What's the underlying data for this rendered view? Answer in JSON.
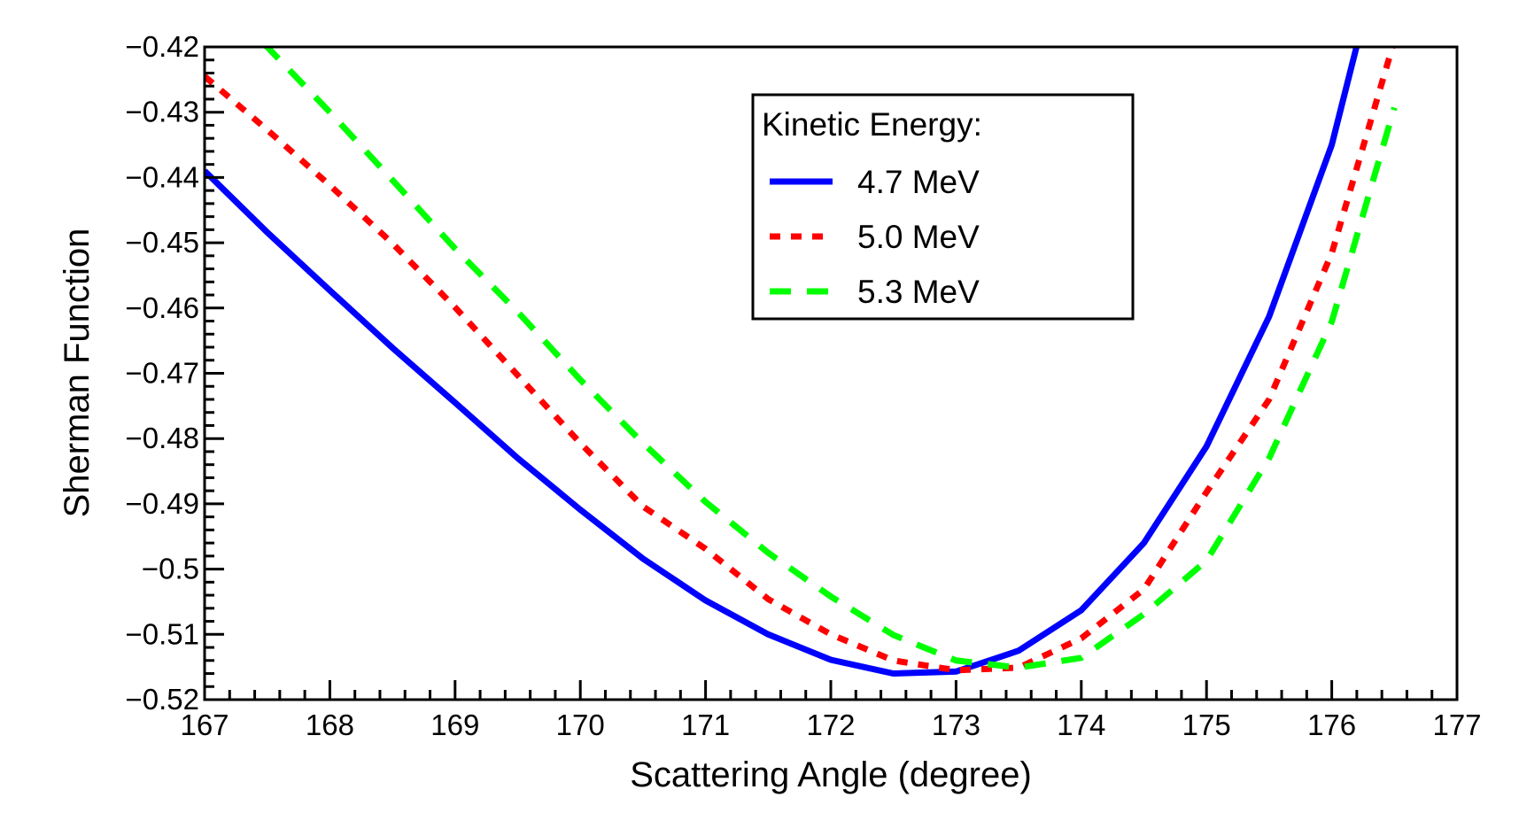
{
  "chart_data": {
    "type": "line",
    "x_label": "Scattering Angle (degree)",
    "y_label": "Sherman Function",
    "legend_title": "Kinetic Energy:",
    "legend_position": "top-center",
    "x": [
      167,
      167.5,
      168,
      168.5,
      169,
      169.5,
      170,
      170.5,
      171,
      171.5,
      172,
      172.5,
      173,
      173.5,
      174,
      174.5,
      175,
      175.5,
      176,
      176.5
    ],
    "series": [
      {
        "name": "4.7 MeV",
        "color": "#0000ff",
        "line_style": "solid",
        "values": [
          -0.439,
          -0.4484,
          -0.4573,
          -0.4661,
          -0.4745,
          -0.483,
          -0.4909,
          -0.4984,
          -0.5048,
          -0.51,
          -0.5139,
          -0.516,
          -0.5157,
          -0.5125,
          -0.5063,
          -0.496,
          -0.4812,
          -0.4613,
          -0.435,
          -0.397
        ]
      },
      {
        "name": "5.0 MeV",
        "color": "#ff0000",
        "line_style": "dotted",
        "values": [
          -0.4245,
          -0.4327,
          -0.4412,
          -0.4501,
          -0.4599,
          -0.4703,
          -0.4807,
          -0.4904,
          -0.4969,
          -0.5046,
          -0.51,
          -0.514,
          -0.5155,
          -0.5151,
          -0.5106,
          -0.5031,
          -0.4882,
          -0.474,
          -0.4516,
          -0.419
        ]
      },
      {
        "name": "5.3 MeV",
        "color": "#00ff00",
        "line_style": "dashed",
        "values": [
          -0.4125,
          -0.42,
          -0.43,
          -0.4404,
          -0.4509,
          -0.4606,
          -0.471,
          -0.4807,
          -0.4897,
          -0.4975,
          -0.5042,
          -0.5101,
          -0.514,
          -0.5151,
          -0.5136,
          -0.5069,
          -0.4987,
          -0.483,
          -0.4621,
          -0.4293
        ]
      }
    ],
    "xlim": [
      167,
      177
    ],
    "xticks": [
      167,
      168,
      169,
      170,
      171,
      172,
      173,
      174,
      175,
      176,
      177
    ],
    "ylim": [
      -0.52,
      -0.42
    ],
    "yticks": [
      {
        "value": -0.52,
        "label": "−0.52"
      },
      {
        "value": -0.51,
        "label": "−0.51"
      },
      {
        "value": -0.5,
        "label": "−0.5"
      },
      {
        "value": -0.49,
        "label": "−0.49"
      },
      {
        "value": -0.48,
        "label": "−0.48"
      },
      {
        "value": -0.47,
        "label": "−0.47"
      },
      {
        "value": -0.46,
        "label": "−0.46"
      },
      {
        "value": -0.45,
        "label": "−0.45"
      },
      {
        "value": -0.44,
        "label": "−0.44"
      },
      {
        "value": -0.43,
        "label": "−0.43"
      },
      {
        "value": -0.42,
        "label": "−0.42"
      }
    ],
    "grid": false
  }
}
